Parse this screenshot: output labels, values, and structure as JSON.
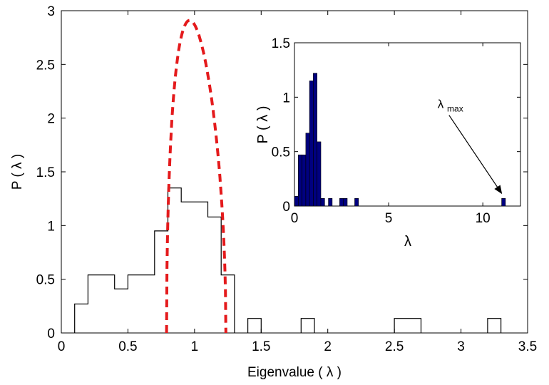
{
  "chart_data": [
    {
      "type": "histogram",
      "role": "main",
      "xlabel": "Eigenvalue ( λ )",
      "ylabel": "P ( λ )",
      "xlim": [
        0,
        3.5
      ],
      "ylim": [
        0,
        3
      ],
      "xticks": [
        "0",
        "0.5",
        "1",
        "1.5",
        "2",
        "2.5",
        "3",
        "3.5"
      ],
      "yticks": [
        "0",
        "0.5",
        "1",
        "1.5",
        "2",
        "2.5",
        "3"
      ],
      "grid": false,
      "histogram": {
        "style": "step-outline",
        "color": "#000000",
        "bins": [
          {
            "x0": 0.1,
            "x1": 0.2,
            "y": 0.27
          },
          {
            "x0": 0.2,
            "x1": 0.4,
            "y": 0.54
          },
          {
            "x0": 0.4,
            "x1": 0.5,
            "y": 0.41
          },
          {
            "x0": 0.5,
            "x1": 0.7,
            "y": 0.54
          },
          {
            "x0": 0.7,
            "x1": 0.8,
            "y": 0.95
          },
          {
            "x0": 0.8,
            "x1": 0.9,
            "y": 1.35
          },
          {
            "x0": 0.9,
            "x1": 1.1,
            "y": 1.22
          },
          {
            "x0": 1.1,
            "x1": 1.2,
            "y": 1.08
          },
          {
            "x0": 1.2,
            "x1": 1.3,
            "y": 0.54
          },
          {
            "x0": 1.4,
            "x1": 1.5,
            "y": 0.135
          },
          {
            "x0": 1.8,
            "x1": 1.9,
            "y": 0.135
          },
          {
            "x0": 2.5,
            "x1": 2.7,
            "y": 0.135
          },
          {
            "x0": 3.2,
            "x1": 3.3,
            "y": 0.135
          }
        ]
      },
      "theory_curve": {
        "style": "dashed",
        "color": "#e41a1c",
        "lambda_min": 0.79,
        "lambda_max": 1.235,
        "peak_x": 0.975,
        "peak_y": 2.91
      }
    },
    {
      "type": "bar",
      "role": "inset",
      "xlabel": "λ",
      "ylabel": "P ( λ )",
      "xlim": [
        0,
        12
      ],
      "ylim": [
        0,
        1.5
      ],
      "xticks": [
        "0",
        "5",
        "10"
      ],
      "yticks": [
        "0",
        "0.5",
        "1",
        "1.5"
      ],
      "bar_color": "#000080",
      "bar_width": 0.2,
      "bars": [
        {
          "x": 0.1,
          "y": 0.09
        },
        {
          "x": 0.3,
          "y": 0.47
        },
        {
          "x": 0.5,
          "y": 0.47
        },
        {
          "x": 0.7,
          "y": 0.67
        },
        {
          "x": 0.9,
          "y": 1.15
        },
        {
          "x": 1.1,
          "y": 1.22
        },
        {
          "x": 1.3,
          "y": 0.59
        },
        {
          "x": 1.5,
          "y": 0.07
        },
        {
          "x": 1.9,
          "y": 0.07
        },
        {
          "x": 2.5,
          "y": 0.07
        },
        {
          "x": 2.7,
          "y": 0.07
        },
        {
          "x": 3.3,
          "y": 0.07
        },
        {
          "x": 11.1,
          "y": 0.07
        }
      ],
      "annotation": {
        "text": "λ",
        "subscript": "max",
        "arrow_target": {
          "x": 11.0,
          "y": 0.09
        },
        "label_position": {
          "x": 7.6,
          "y": 0.9
        }
      }
    }
  ]
}
